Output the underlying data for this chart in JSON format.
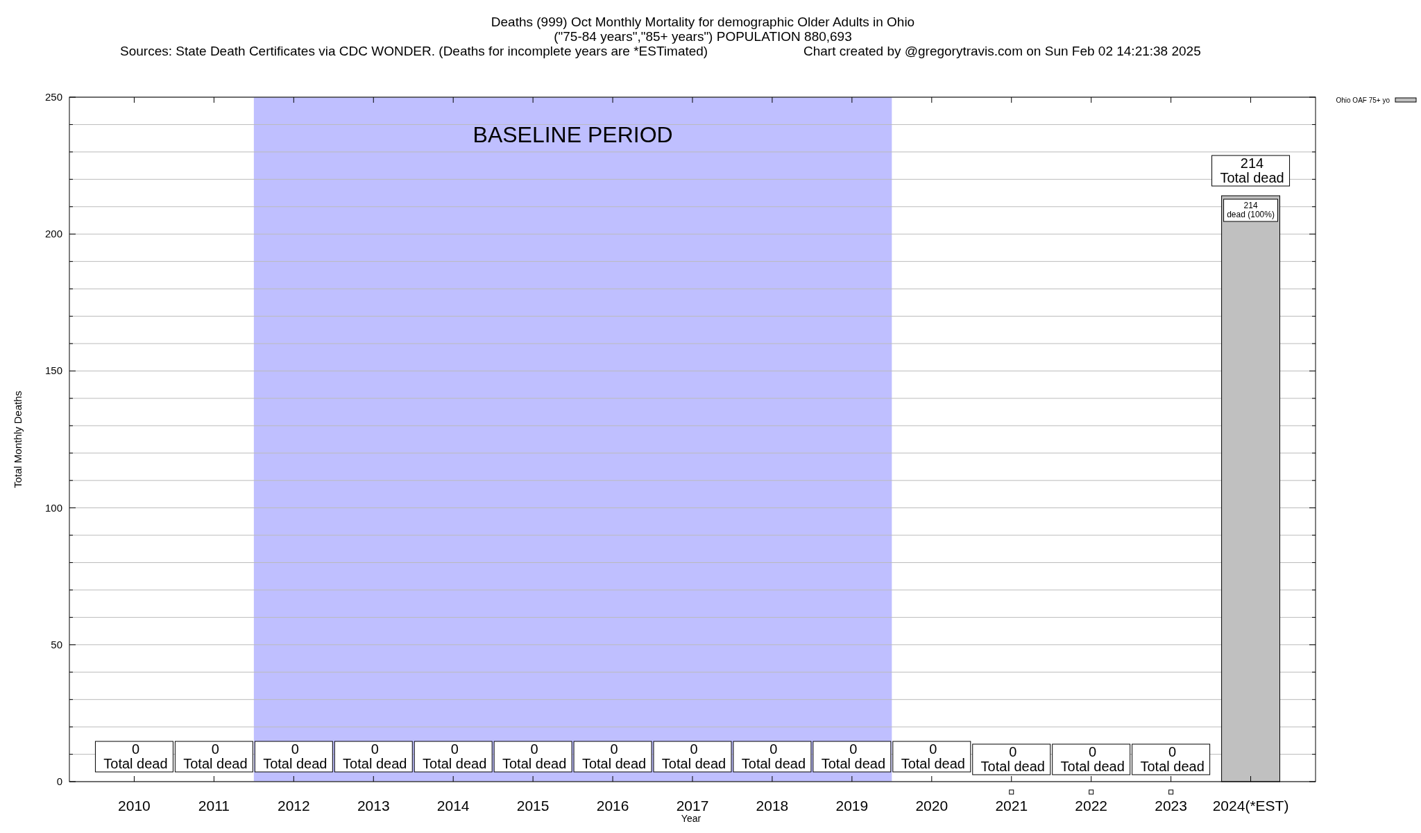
{
  "chart_data": {
    "type": "bar",
    "title": "Deaths (999) Oct Monthly Mortality for demographic Older Adults in Ohio",
    "subtitle": "(\"75-84 years\",\"85+ years\") POPULATION 880,693",
    "annotations": [
      "Sources: State Death Certificates via CDC WONDER. (Deaths for incomplete years are *ESTimated)",
      "Chart created by @gregorytravis.com on Sun Feb 02 14:21:38 2025"
    ],
    "xlabel": "Year",
    "ylabel": "Total Monthly Deaths",
    "categories": [
      "2010",
      "2011",
      "2012",
      "2013",
      "2014",
      "2015",
      "2016",
      "2017",
      "2018",
      "2019",
      "2020",
      "2021",
      "2022",
      "2023",
      "2024(*EST)"
    ],
    "series": [
      {
        "name": "Ohio OAF 75+ yo",
        "color": "#c0c0c0",
        "values": [
          0,
          0,
          0,
          0,
          0,
          0,
          0,
          0,
          0,
          0,
          0,
          0,
          0,
          0,
          214
        ],
        "value_labels": [
          null,
          null,
          null,
          null,
          null,
          null,
          null,
          null,
          null,
          null,
          null,
          null,
          null,
          null,
          "214\ndead (100%)"
        ]
      }
    ],
    "totals": [
      "0\nTotal dead",
      "0\nTotal dead",
      "0\nTotal dead",
      "0\nTotal dead",
      "0\nTotal dead",
      "0\nTotal dead",
      "0\nTotal dead",
      "0\nTotal dead",
      "0\nTotal dead",
      "0\nTotal dead",
      "0\nTotal dead",
      "0\nTotal dead",
      "0\nTotal dead",
      "0\nTotal dead",
      "214\nTotal dead"
    ],
    "ylim": [
      0,
      250
    ],
    "yticks": [
      0,
      {
        "value": 10,
        "label": null
      },
      {
        "value": 20,
        "label": null
      },
      {
        "value": 30,
        "label": null
      },
      {
        "value": 40,
        "label": null
      },
      50,
      {
        "value": 60,
        "label": null
      },
      {
        "value": 70,
        "label": null
      },
      {
        "value": 80,
        "label": null
      },
      {
        "value": 90,
        "label": null
      },
      100,
      {
        "value": 110,
        "label": null
      },
      {
        "value": 120,
        "label": null
      },
      {
        "value": 130,
        "label": null
      },
      {
        "value": 140,
        "label": null
      },
      150,
      {
        "value": 160,
        "label": null
      },
      {
        "value": 170,
        "label": null
      },
      {
        "value": 180,
        "label": null
      },
      {
        "value": 190,
        "label": null
      },
      200,
      {
        "value": 210,
        "label": null
      },
      {
        "value": 220,
        "label": null
      },
      {
        "value": 230,
        "label": null
      },
      {
        "value": 240,
        "label": null
      },
      250
    ],
    "bands": [
      {
        "axis": "x",
        "from": "2012",
        "to": "2019",
        "label": "BASELINE PERIOD",
        "color": "#bfbfff"
      }
    ],
    "grid": "y",
    "legend": "top right"
  }
}
